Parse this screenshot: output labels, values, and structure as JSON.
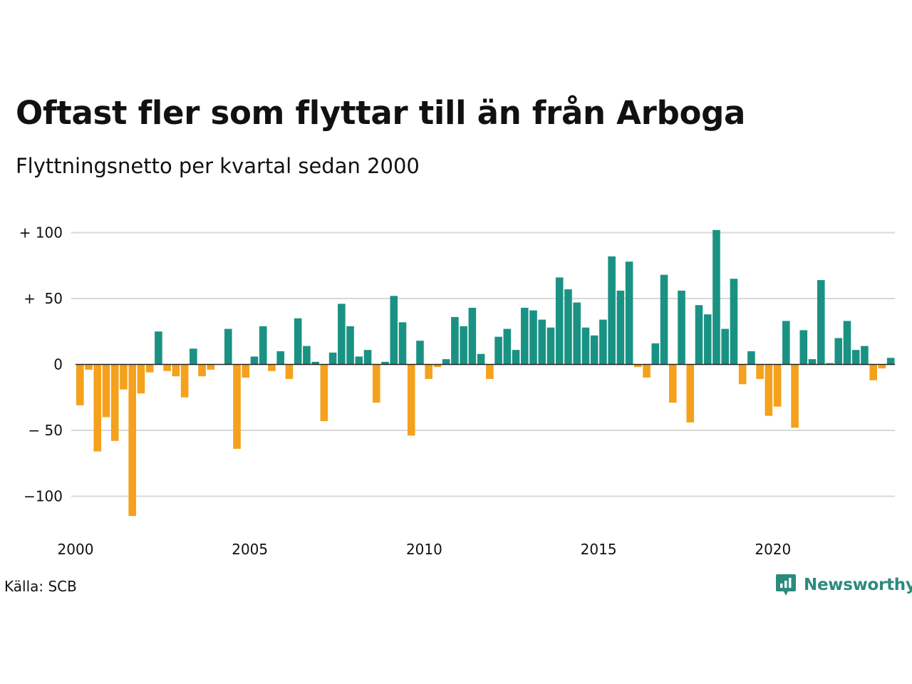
{
  "title": "Oftast fler som flyttar till än från Arboga",
  "subtitle": "Flyttningsnetto per kvartal sedan 2000",
  "source": "Källa: SCB",
  "brand": "Newsworthy",
  "colors": {
    "positive": "#1a9283",
    "negative": "#f5a11c",
    "grid": "#d9d9d9",
    "brand": "#2b8a7e"
  },
  "chart_data": {
    "type": "bar",
    "title": "Oftast fler som flyttar till än från Arboga",
    "subtitle": "Flyttningsnetto per kvartal sedan 2000",
    "xlabel": "",
    "ylabel": "",
    "x_start": 2000,
    "periods_per_year": 4,
    "x_ticks": [
      "2000",
      "2005",
      "2010",
      "2015",
      "2020"
    ],
    "y_ticks": [
      {
        "value": 100,
        "label": "+ 100"
      },
      {
        "value": 50,
        "label": "+  50"
      },
      {
        "value": 0,
        "label": "0"
      },
      {
        "value": -50,
        "label": "− 50"
      },
      {
        "value": -100,
        "label": "−100"
      }
    ],
    "ylim": [
      -115,
      102
    ],
    "grid": true,
    "values": [
      -31,
      -4,
      -66,
      -40,
      -58,
      -19,
      -115,
      -22,
      -6,
      25,
      -5,
      -9,
      -25,
      12,
      -9,
      -4,
      0,
      27,
      -64,
      -10,
      6,
      29,
      -5,
      10,
      -11,
      35,
      14,
      2,
      -43,
      9,
      46,
      29,
      6,
      11,
      -29,
      2,
      52,
      32,
      -54,
      18,
      -11,
      -2,
      4,
      36,
      29,
      43,
      8,
      -11,
      21,
      27,
      11,
      43,
      41,
      34,
      28,
      66,
      57,
      47,
      28,
      22,
      34,
      82,
      56,
      78,
      -2,
      -10,
      16,
      68,
      -29,
      56,
      -44,
      45,
      38,
      102,
      27,
      65,
      -15,
      10,
      -11,
      -39,
      -32,
      33,
      -48,
      26,
      4,
      64,
      1,
      20,
      33,
      11,
      14,
      -12,
      -3,
      5
    ]
  }
}
